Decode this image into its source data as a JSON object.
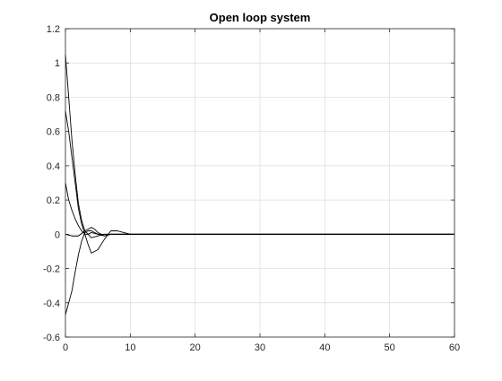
{
  "chart_data": {
    "type": "line",
    "title": "Open loop system",
    "xlabel": "",
    "ylabel": "",
    "xlim": [
      0,
      60
    ],
    "ylim": [
      -0.6,
      1.2
    ],
    "x_ticks": [
      0,
      10,
      20,
      30,
      40,
      50,
      60
    ],
    "y_ticks": [
      -0.6,
      -0.4,
      -0.2,
      0,
      0.2,
      0.4,
      0.6,
      0.8,
      1,
      1.2
    ],
    "x_tick_labels": [
      "0",
      "10",
      "20",
      "30",
      "40",
      "50",
      "60"
    ],
    "y_tick_labels": [
      "-0.6",
      "-0.4",
      "-0.2",
      "0",
      "0.2",
      "0.4",
      "0.6",
      "0.8",
      "1",
      "1.2"
    ],
    "grid": true,
    "line_color": "#000000",
    "grid_color": "#dcdcdc",
    "series": [
      {
        "x": [
          0,
          0.5,
          1,
          1.5,
          2,
          2.5,
          3,
          4,
          5,
          6,
          8,
          10,
          12,
          60
        ],
        "values": [
          1.05,
          0.8,
          0.55,
          0.35,
          0.18,
          0.08,
          0.02,
          -0.02,
          -0.01,
          0.0,
          0.0,
          0.0,
          0.0,
          0.0
        ]
      },
      {
        "x": [
          0,
          0.5,
          1,
          1.5,
          2,
          2.5,
          3,
          3.5,
          4,
          5,
          6,
          7,
          8,
          9,
          10,
          60
        ],
        "values": [
          0.72,
          0.6,
          0.45,
          0.3,
          0.15,
          0.06,
          0.0,
          -0.06,
          -0.11,
          -0.09,
          -0.03,
          0.02,
          0.02,
          0.01,
          0.0,
          0.0
        ]
      },
      {
        "x": [
          0,
          0.5,
          1,
          1.5,
          2,
          2.5,
          3,
          3.5,
          4,
          5,
          6,
          7,
          8,
          10,
          60
        ],
        "values": [
          -0.47,
          -0.4,
          -0.33,
          -0.22,
          -0.12,
          -0.04,
          0.01,
          0.02,
          0.02,
          0.0,
          -0.01,
          0.0,
          0.0,
          0.0,
          0.0
        ]
      },
      {
        "x": [
          0,
          0.5,
          1,
          1.5,
          2,
          2.5,
          3,
          3.5,
          4,
          5,
          6,
          8,
          10,
          60
        ],
        "values": [
          0.3,
          0.2,
          0.14,
          0.09,
          0.05,
          0.02,
          0.0,
          0.0,
          0.01,
          0.0,
          0.0,
          0.0,
          0.0,
          0.0
        ]
      },
      {
        "x": [
          0,
          1,
          2,
          3,
          4,
          4.5,
          5,
          6,
          7,
          8,
          10,
          60
        ],
        "values": [
          0.0,
          -0.01,
          -0.01,
          0.02,
          0.04,
          0.03,
          0.01,
          -0.01,
          0.0,
          0.0,
          0.0,
          0.0
        ]
      }
    ]
  }
}
